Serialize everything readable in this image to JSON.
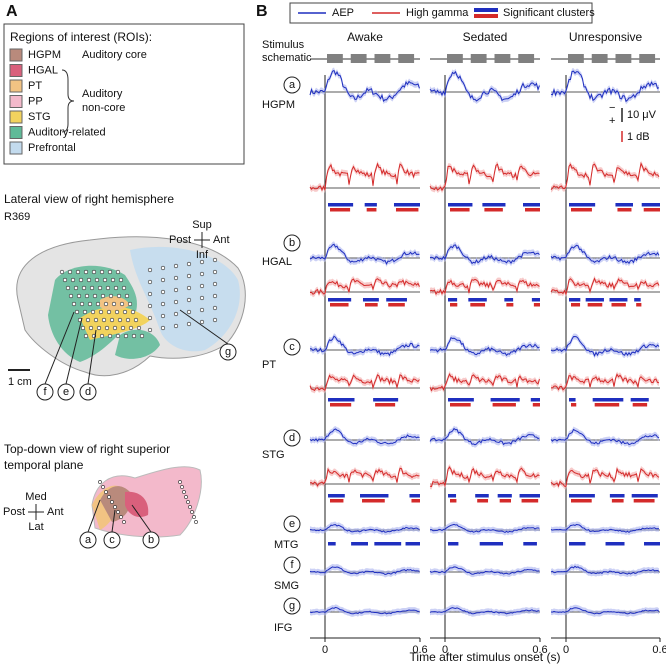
{
  "panel_a": {
    "label": "A",
    "legend": {
      "title": "Regions of interest (ROIs):",
      "items": [
        {
          "label": "HGPM",
          "color": "#b98a7c"
        },
        {
          "label": "HGAL",
          "color": "#d9607c"
        },
        {
          "label": "PT",
          "color": "#f2c383"
        },
        {
          "label": "PP",
          "color": "#f3b9cb"
        },
        {
          "label": "STG",
          "color": "#f2d35e"
        },
        {
          "label": "Auditory-related",
          "color": "#5fba98"
        },
        {
          "label": "Prefrontal",
          "color": "#c3dbee"
        }
      ],
      "core_group": "Auditory core",
      "noncore_group": [
        "Auditory",
        "non-core"
      ]
    },
    "lateral_view": {
      "title": "Lateral view of right hemisphere",
      "subject": "R369",
      "directions": {
        "up": "Sup",
        "left": "Post",
        "right": "Ant",
        "down": "Inf"
      },
      "scale": "1 cm",
      "markers": [
        "f",
        "e",
        "d",
        "g"
      ]
    },
    "top_view": {
      "title": [
        "Top-down view of right superior",
        "temporal plane"
      ],
      "directions": {
        "up": "Med",
        "left": "Post",
        "right": "Ant",
        "down": "Lat"
      },
      "markers": [
        "a",
        "c",
        "b"
      ]
    }
  },
  "panel_b": {
    "label": "B",
    "legend": [
      {
        "label": "AEP",
        "color": "#1f2fbf"
      },
      {
        "label": "High gamma",
        "color": "#d42a2a"
      },
      {
        "label": "Significant clusters"
      }
    ],
    "columns": [
      "Awake",
      "Sedated",
      "Unresponsive"
    ],
    "stimulus_label": [
      "Stimulus",
      "schematic"
    ],
    "rows": [
      {
        "marker": "a",
        "roi": "HGPM"
      },
      {
        "marker": "b",
        "roi": "HGAL"
      },
      {
        "marker": "c",
        "roi": "PT"
      },
      {
        "marker": "d",
        "roi": "STG"
      },
      {
        "marker": "e",
        "roi": "MTG"
      },
      {
        "marker": "f",
        "roi": "SMG"
      },
      {
        "marker": "g",
        "roi": "IFG"
      }
    ],
    "scale_bars": [
      "10 μV",
      "1 dB"
    ],
    "scale_signs": [
      "−",
      "+"
    ],
    "x_ticks": [
      "0",
      "0.6"
    ],
    "x_label": "Time after stimulus onset (s)"
  }
}
